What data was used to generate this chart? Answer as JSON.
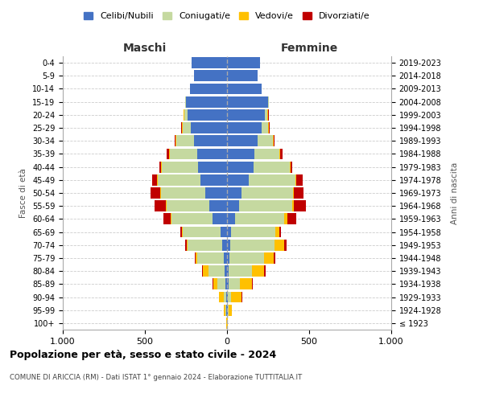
{
  "age_groups": [
    "100+",
    "95-99",
    "90-94",
    "85-89",
    "80-84",
    "75-79",
    "70-74",
    "65-69",
    "60-64",
    "55-59",
    "50-54",
    "45-49",
    "40-44",
    "35-39",
    "30-34",
    "25-29",
    "20-24",
    "15-19",
    "10-14",
    "5-9",
    "0-4"
  ],
  "birth_years": [
    "≤ 1923",
    "1924-1928",
    "1929-1933",
    "1934-1938",
    "1939-1943",
    "1944-1948",
    "1949-1953",
    "1954-1958",
    "1959-1963",
    "1964-1968",
    "1969-1973",
    "1974-1978",
    "1979-1983",
    "1984-1988",
    "1989-1993",
    "1994-1998",
    "1999-2003",
    "2004-2008",
    "2009-2013",
    "2014-2018",
    "2019-2023"
  ],
  "colors": {
    "celibi": "#4472c4",
    "coniugati": "#c5d9a0",
    "vedovi": "#ffc000",
    "divorziati": "#c00000"
  },
  "maschi": {
    "celibi": [
      2,
      5,
      5,
      10,
      15,
      20,
      30,
      40,
      90,
      110,
      130,
      160,
      175,
      180,
      200,
      220,
      240,
      250,
      225,
      200,
      215
    ],
    "coniugati": [
      0,
      5,
      15,
      50,
      100,
      160,
      210,
      230,
      250,
      260,
      270,
      260,
      220,
      170,
      110,
      50,
      20,
      5,
      0,
      0,
      0
    ],
    "vedovi": [
      2,
      10,
      30,
      25,
      30,
      10,
      5,
      5,
      5,
      5,
      5,
      5,
      5,
      5,
      5,
      5,
      5,
      0,
      0,
      0,
      0
    ],
    "divorziati": [
      0,
      0,
      0,
      5,
      5,
      5,
      10,
      10,
      40,
      65,
      60,
      30,
      10,
      15,
      5,
      5,
      0,
      0,
      0,
      0,
      0
    ]
  },
  "femmine": {
    "celibi": [
      2,
      5,
      5,
      10,
      12,
      15,
      20,
      25,
      50,
      75,
      90,
      130,
      160,
      165,
      185,
      210,
      230,
      250,
      210,
      185,
      200
    ],
    "coniugati": [
      0,
      5,
      20,
      70,
      140,
      210,
      270,
      270,
      300,
      320,
      310,
      285,
      220,
      155,
      95,
      40,
      15,
      5,
      0,
      0,
      0
    ],
    "vedovi": [
      5,
      20,
      65,
      70,
      75,
      60,
      60,
      25,
      20,
      10,
      5,
      5,
      5,
      5,
      5,
      5,
      5,
      0,
      0,
      0,
      0
    ],
    "divorziati": [
      0,
      0,
      5,
      5,
      10,
      10,
      15,
      10,
      50,
      75,
      60,
      40,
      10,
      15,
      5,
      5,
      5,
      0,
      0,
      0,
      0
    ]
  },
  "title": "Popolazione per età, sesso e stato civile - 2024",
  "subtitle": "COMUNE DI ARICCIA (RM) - Dati ISTAT 1° gennaio 2024 - Elaborazione TUTTITALIA.IT",
  "ylabel_left": "Fasce di età",
  "ylabel_right": "Anni di nascita",
  "xlabel_maschi": "Maschi",
  "xlabel_femmine": "Femmine",
  "legend_labels": [
    "Celibi/Nubili",
    "Coniugati/e",
    "Vedovi/e",
    "Divorziati/e"
  ],
  "xlim": 1000,
  "background_color": "#ffffff",
  "grid_color": "#cccccc"
}
